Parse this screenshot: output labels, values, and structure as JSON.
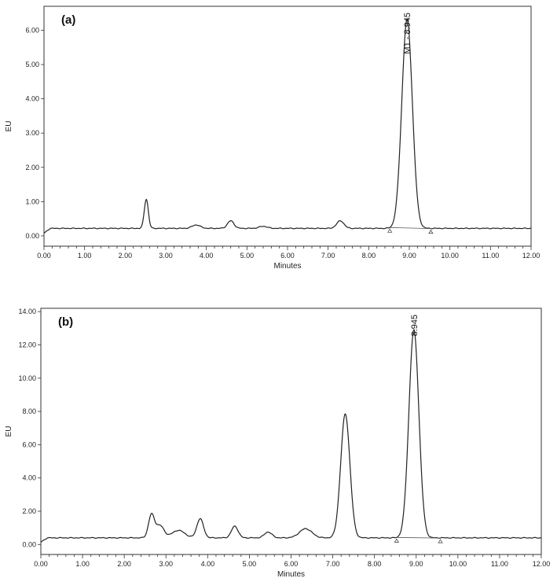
{
  "chart_data": [
    {
      "type": "line",
      "panel_label": "(a)",
      "xlabel": "Minutes",
      "ylabel": "EU",
      "xlim": [
        0,
        12
      ],
      "ylim": [
        -0.3,
        6.7
      ],
      "xticks": [
        "0.00",
        "1.00",
        "2.00",
        "3.00",
        "4.00",
        "5.00",
        "6.00",
        "7.00",
        "8.00",
        "9.00",
        "10.00",
        "11.00",
        "12.00"
      ],
      "yticks": [
        "0.00",
        "1.00",
        "2.00",
        "3.00",
        "4.00",
        "5.00",
        "6.00"
      ],
      "ytick_values": [
        0,
        1,
        2,
        3,
        4,
        5,
        6
      ],
      "baseline": 0.22,
      "peaks": [
        {
          "t": 2.52,
          "h": 0.85,
          "w": 0.05
        },
        {
          "t": 3.75,
          "h": 0.1,
          "w": 0.1
        },
        {
          "t": 4.6,
          "h": 0.22,
          "w": 0.08
        },
        {
          "t": 5.4,
          "h": 0.06,
          "w": 0.1
        },
        {
          "t": 7.3,
          "h": 0.22,
          "w": 0.09
        },
        {
          "t": 8.945,
          "h": 6.1,
          "w": 0.13
        }
      ],
      "peak_label": {
        "text": "M1 - 8.945",
        "t": 8.945
      },
      "integration_marks": [
        8.52,
        9.53
      ]
    },
    {
      "type": "line",
      "panel_label": "(b)",
      "xlabel": "Minutes",
      "ylabel": "EU",
      "xlim": [
        0,
        12
      ],
      "ylim": [
        -0.6,
        14.2
      ],
      "xticks": [
        "0.00",
        "1.00",
        "2.00",
        "3.00",
        "4.00",
        "5.00",
        "6.00",
        "7.00",
        "8.00",
        "9.00",
        "10.00",
        "11.00",
        "12.00"
      ],
      "yticks": [
        "0.00",
        "2.00",
        "4.00",
        "6.00",
        "8.00",
        "10.00",
        "12.00",
        "14.00"
      ],
      "ytick_values": [
        0,
        2,
        4,
        6,
        8,
        10,
        12,
        14
      ],
      "baseline": 0.4,
      "peaks": [
        {
          "t": 2.65,
          "h": 1.35,
          "w": 0.07
        },
        {
          "t": 2.85,
          "h": 0.75,
          "w": 0.1
        },
        {
          "t": 3.3,
          "h": 0.45,
          "w": 0.15
        },
        {
          "t": 3.82,
          "h": 1.15,
          "w": 0.08
        },
        {
          "t": 4.65,
          "h": 0.7,
          "w": 0.08
        },
        {
          "t": 5.45,
          "h": 0.35,
          "w": 0.09
        },
        {
          "t": 6.35,
          "h": 0.55,
          "w": 0.15
        },
        {
          "t": 7.3,
          "h": 7.45,
          "w": 0.11
        },
        {
          "t": 8.945,
          "h": 12.5,
          "w": 0.12
        }
      ],
      "peak_label": {
        "text": "8.945",
        "t": 8.945
      },
      "integration_marks": [
        8.53,
        9.58
      ]
    }
  ]
}
